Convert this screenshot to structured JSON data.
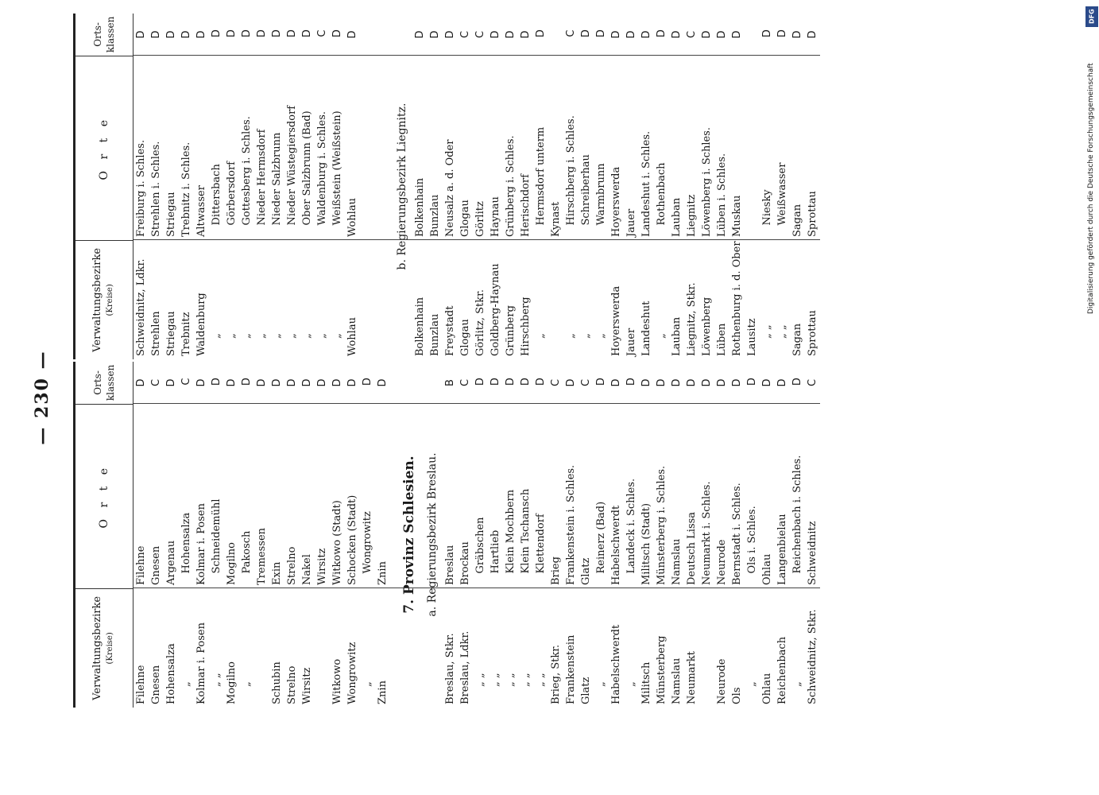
{
  "page_number": "— 230 —",
  "header": {
    "bezirk": "Verwaltungsbezirke",
    "kreise": "(Kreise)",
    "orte": "O r t e",
    "klassen_1": "Orts-",
    "klassen_2": "klassen"
  },
  "left_rows_1": [
    {
      "bezirk": "Filehne",
      "ort": "Filehne",
      "klasse": "D"
    },
    {
      "bezirk": "Gnesen",
      "ort": "Gnesen",
      "klasse": "C"
    },
    {
      "bezirk": "Hohensalza",
      "ort": "Argenau",
      "klasse": "D"
    },
    {
      "bezirk": "„",
      "ort": "Hohensalza",
      "klasse": "C"
    },
    {
      "bezirk": "Kolmar i. Posen",
      "ort": "Kolmar i. Posen",
      "klasse": "D"
    },
    {
      "bezirk": "„ „",
      "ort": "Schneidemühl",
      "klasse": "D"
    },
    {
      "bezirk": "Mogilno",
      "ort": "Mogilno",
      "klasse": "D"
    },
    {
      "bezirk": "„",
      "ort": "Pakosch",
      "klasse": "D"
    },
    {
      "bezirk": "",
      "ort": "Tremessen",
      "klasse": "D"
    },
    {
      "bezirk": "Schubin",
      "ort": "Exin",
      "klasse": "D"
    },
    {
      "bezirk": "Strelno",
      "ort": "Strelno",
      "klasse": "D"
    },
    {
      "bezirk": "Wirsitz",
      "ort": "Nakel",
      "klasse": "D"
    },
    {
      "bezirk": "",
      "ort": "Wirsitz",
      "klasse": "D"
    },
    {
      "bezirk": "Witkowo",
      "ort": "Witkowo (Stadt)",
      "klasse": "D"
    },
    {
      "bezirk": "Wongrowitz",
      "ort": "Schocken (Stadt)",
      "klasse": "D"
    },
    {
      "bezirk": "„",
      "ort": "Wongrowitz",
      "klasse": "D"
    },
    {
      "bezirk": "Znin",
      "ort": "Znin",
      "klasse": "D"
    }
  ],
  "province": "7. Provinz Schlesien.",
  "bezirk_a": "a. Regierungsbezirk Breslau.",
  "left_rows_2": [
    {
      "bezirk": "Breslau, Stkr.",
      "ort": "Breslau",
      "klasse": "B"
    },
    {
      "bezirk": "Breslau, Ldkr.",
      "ort": "Brockau",
      "klasse": "C"
    },
    {
      "bezirk": "„ „",
      "ort": "Gräbschen",
      "klasse": "D"
    },
    {
      "bezirk": "„ „",
      "ort": "Hartlieb",
      "klasse": "D"
    },
    {
      "bezirk": "„ „",
      "ort": "Klein Mochbern",
      "klasse": "D"
    },
    {
      "bezirk": "„ „",
      "ort": "Klein Tschansch",
      "klasse": "D"
    },
    {
      "bezirk": "„ „",
      "ort": "Klettendorf",
      "klasse": "D"
    },
    {
      "bezirk": "Brieg, Stkr.",
      "ort": "Brieg",
      "klasse": "C"
    },
    {
      "bezirk": "Frankenstein",
      "ort": "Frankenstein i. Schles.",
      "klasse": "D"
    },
    {
      "bezirk": "Glatz",
      "ort": "Glatz",
      "klasse": "C"
    },
    {
      "bezirk": "„",
      "ort": "Reinerz (Bad)",
      "klasse": "D"
    },
    {
      "bezirk": "Habelschwerdt",
      "ort": "Habelschwerdt",
      "klasse": "D"
    },
    {
      "bezirk": "„",
      "ort": "Landeck i. Schles.",
      "klasse": "D"
    },
    {
      "bezirk": "Militsch",
      "ort": "Militsch (Stadt)",
      "klasse": "D"
    },
    {
      "bezirk": "Münsterberg",
      "ort": "Münsterberg i. Schles.",
      "klasse": "D"
    },
    {
      "bezirk": "Namslau",
      "ort": "Namslau",
      "klasse": "D"
    },
    {
      "bezirk": "Neumarkt",
      "ort": "Deutsch Lissa",
      "klasse": "D"
    },
    {
      "bezirk": "",
      "ort": "Neumarkt i. Schles.",
      "klasse": "D"
    },
    {
      "bezirk": "Neurode",
      "ort": "Neurode",
      "klasse": "D"
    },
    {
      "bezirk": "Öls",
      "ort": "Bernstadt i. Schles.",
      "klasse": "D"
    },
    {
      "bezirk": "„",
      "ort": "Öls i. Schles.",
      "klasse": "D"
    },
    {
      "bezirk": "Ohlau",
      "ort": "Ohlau",
      "klasse": "D"
    },
    {
      "bezirk": "Reichenbach",
      "ort": "Langenbielau",
      "klasse": "D"
    },
    {
      "bezirk": "„",
      "ort": "Reichenbach i. Schles.",
      "klasse": "D"
    },
    {
      "bezirk": "Schweidnitz, Stkr.",
      "ort": "Schweidnitz",
      "klasse": "C"
    }
  ],
  "right_rows_1": [
    {
      "bezirk": "Schweidnitz, Ldkr.",
      "ort": "Freiburg i. Schles.",
      "klasse": "D"
    },
    {
      "bezirk": "Strehlen",
      "ort": "Strehlen i. Schles.",
      "klasse": "D"
    },
    {
      "bezirk": "Striegau",
      "ort": "Striegau",
      "klasse": "D"
    },
    {
      "bezirk": "Trebnitz",
      "ort": "Trebnitz i. Schles.",
      "klasse": "D"
    },
    {
      "bezirk": "Waldenburg",
      "ort": "Altwasser",
      "klasse": "D"
    },
    {
      "bezirk": "„",
      "ort": "Dittersbach",
      "klasse": "D"
    },
    {
      "bezirk": "„",
      "ort": "Görbersdorf",
      "klasse": "D"
    },
    {
      "bezirk": "„",
      "ort": "Gottesberg i. Schles.",
      "klasse": "D"
    },
    {
      "bezirk": "„",
      "ort": "Nieder Hermsdorf",
      "klasse": "D"
    },
    {
      "bezirk": "„",
      "ort": "Nieder Salzbrunn",
      "klasse": "D"
    },
    {
      "bezirk": "„",
      "ort": "Nieder Wüstegiersdorf",
      "klasse": "D"
    },
    {
      "bezirk": "„",
      "ort": "Ober Salzbrunn (Bad)",
      "klasse": "D"
    },
    {
      "bezirk": "„",
      "ort": "Waldenburg i. Schles.",
      "klasse": "C"
    },
    {
      "bezirk": "„",
      "ort": "Weißstein (Weißstein)",
      "klasse": "D"
    },
    {
      "bezirk": "Wohlau",
      "ort": "Wohlau",
      "klasse": "D"
    }
  ],
  "bezirk_b": "b. Regierungsbezirk Liegnitz.",
  "right_rows_2": [
    {
      "bezirk": "Bolkenhain",
      "ort": "Bolkenhain",
      "klasse": "D"
    },
    {
      "bezirk": "Bunzlau",
      "ort": "Bunzlau",
      "klasse": "D"
    },
    {
      "bezirk": "Freystadt",
      "ort": "Neusalz a. d. Oder",
      "klasse": "D"
    },
    {
      "bezirk": "Glogau",
      "ort": "Glogau",
      "klasse": "C"
    },
    {
      "bezirk": "Görlitz, Stkr.",
      "ort": "Görlitz",
      "klasse": "C"
    },
    {
      "bezirk": "Goldberg-Haynau",
      "ort": "Haynau",
      "klasse": "D"
    },
    {
      "bezirk": "Grünberg",
      "ort": "Grünberg i. Schles.",
      "klasse": "D"
    },
    {
      "bezirk": "Hirschberg",
      "ort": "Herischdorf",
      "klasse": "D"
    },
    {
      "bezirk": "„",
      "ort": "Hermsdorf unterm",
      "klasse": "D"
    },
    {
      "bezirk": "",
      "ort": "Kynast",
      "klasse": ""
    },
    {
      "bezirk": "„",
      "ort": "Hirschberg i. Schles.",
      "klasse": "C"
    },
    {
      "bezirk": "„",
      "ort": "Schreiberhau",
      "klasse": "D"
    },
    {
      "bezirk": "„",
      "ort": "Warmbrunn",
      "klasse": "D"
    },
    {
      "bezirk": "Hoyerswerda",
      "ort": "Hoyerswerda",
      "klasse": "D"
    },
    {
      "bezirk": "Jauer",
      "ort": "Jauer",
      "klasse": "D"
    },
    {
      "bezirk": "Landeshut",
      "ort": "Landeshut i. Schles.",
      "klasse": "D"
    },
    {
      "bezirk": "„",
      "ort": "Rothenbach",
      "klasse": "D"
    },
    {
      "bezirk": "Lauban",
      "ort": "Lauban",
      "klasse": "D"
    },
    {
      "bezirk": "Liegnitz, Stkr.",
      "ort": "Liegnitz",
      "klasse": "C"
    },
    {
      "bezirk": "Löwenberg",
      "ort": "Löwenberg i. Schles.",
      "klasse": "D"
    },
    {
      "bezirk": "Lüben",
      "ort": "Lüben i. Schles.",
      "klasse": "D"
    },
    {
      "bezirk": "Rothenburg i. d. Ober",
      "ort": "Muskau",
      "klasse": "D"
    },
    {
      "bezirk": "Lausitz",
      "ort": "",
      "klasse": ""
    },
    {
      "bezirk": "„ „",
      "ort": "Niesky",
      "klasse": "D"
    },
    {
      "bezirk": "„ „",
      "ort": "Weißwasser",
      "klasse": "D"
    },
    {
      "bezirk": "Sagan",
      "ort": "Sagan",
      "klasse": "D"
    },
    {
      "bezirk": "Sprottau",
      "ort": "Sprottau",
      "klasse": "D"
    }
  ],
  "dfg_logo": "DFG",
  "credit": "Digitalisierung gefördert durch die Deutsche Forschungsgemeinschaft"
}
